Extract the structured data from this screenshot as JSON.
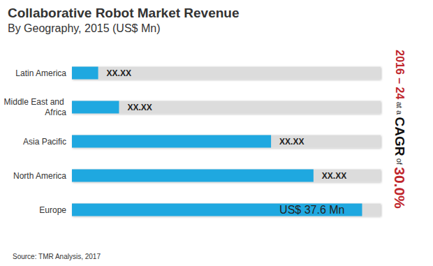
{
  "chart_data": {
    "type": "bar",
    "title": "Collaborative Robot Market Revenue",
    "subtitle": "By Geography, 2015 (US$ Mn)",
    "categories": [
      "Latin America",
      "Middle East and Africa",
      "Asia Pacific",
      "North America",
      "Europe"
    ],
    "values": [
      3.4,
      6.1,
      25.8,
      31.3,
      37.6
    ],
    "value_labels": [
      "XX.XX",
      "XX.XX",
      "XX.XX",
      "XX.XX",
      "US$ 37.6 Mn"
    ],
    "color": "#1fa8e0",
    "orientation": "horizontal",
    "xlim": [
      0,
      40
    ],
    "data_labels": true,
    "tick_labels": "y",
    "grid": false,
    "annotations": [
      "2016 – 24",
      "at a",
      "CAGR",
      "of",
      "30.0%"
    ],
    "source": "Source: TMR Analysis, 2017"
  }
}
